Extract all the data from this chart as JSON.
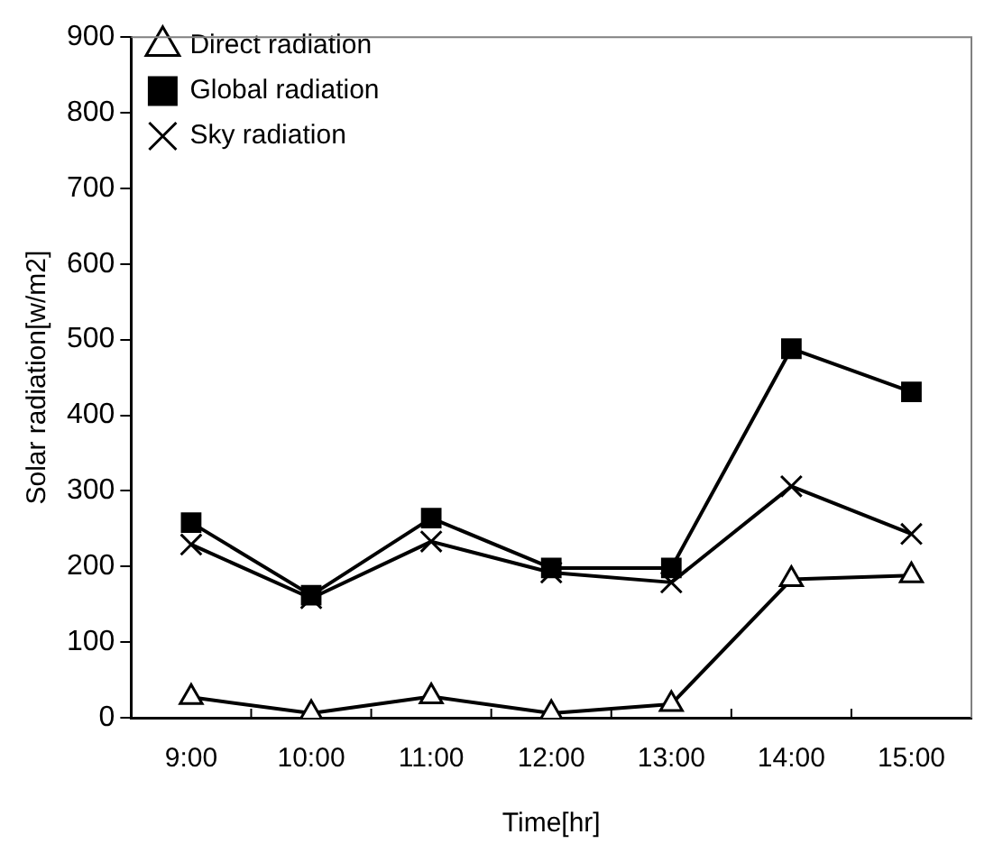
{
  "chart_data": {
    "type": "line",
    "xlabel": "Time[hr]",
    "ylabel": "Solar radiation[w/m2]",
    "categories": [
      "9:00",
      "10:00",
      "11:00",
      "12:00",
      "13:00",
      "14:00",
      "15:00"
    ],
    "series": [
      {
        "name": "Direct radiation",
        "color": "#000000",
        "marker": "triangle",
        "values": [
          27,
          6,
          28,
          6,
          18,
          183,
          188
        ]
      },
      {
        "name": "Global radiation",
        "color": "#000000",
        "marker": "square",
        "values": [
          258,
          162,
          264,
          198,
          198,
          488,
          431
        ]
      },
      {
        "name": "Sky radiation",
        "color": "#000000",
        "marker": "cross",
        "values": [
          229,
          158,
          233,
          192,
          179,
          306,
          243
        ]
      }
    ],
    "ylim": [
      0,
      900
    ],
    "yticks": [
      0,
      100,
      200,
      300,
      400,
      500,
      600,
      700,
      800,
      900
    ],
    "grid": false,
    "legend": "top left",
    "line_style": "solid"
  }
}
